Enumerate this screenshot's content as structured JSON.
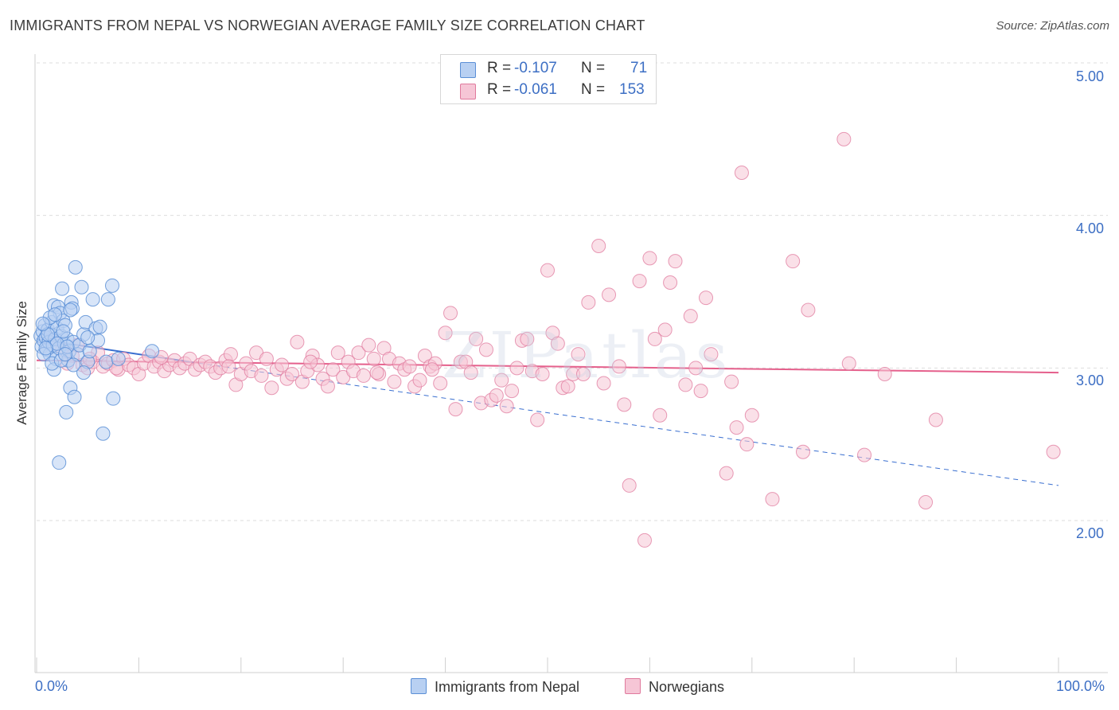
{
  "title": "IMMIGRANTS FROM NEPAL VS NORWEGIAN AVERAGE FAMILY SIZE CORRELATION CHART",
  "source": "Source: ZipAtlas.com",
  "watermark": "ZIPatlas",
  "colors": {
    "blue": "#5b8fd6",
    "blue_fill": "#b8d0f2",
    "blue_line": "#3a6fd0",
    "pink": "#e07a9d",
    "pink_fill": "#f6c6d6",
    "pink_line": "#e5608c",
    "tick_text": "#3d6fc4",
    "grid": "#dddddd"
  },
  "stats": {
    "nepal": {
      "r_label": "R =",
      "r": "-0.107",
      "n_label": "N =",
      "n": "71"
    },
    "norwegians": {
      "r_label": "R =",
      "r": "-0.061",
      "n_label": "N =",
      "n": "153"
    }
  },
  "chart_data": {
    "type": "scatter",
    "title": "IMMIGRANTS FROM NEPAL VS NORWEGIAN AVERAGE FAMILY SIZE CORRELATION CHART",
    "xlabel": "",
    "ylabel": "Average Family Size",
    "xlim": [
      0,
      100
    ],
    "ylim": [
      1.0,
      5.1
    ],
    "x_tick_labels": [
      "0.0%",
      "100.0%"
    ],
    "y_ticks": [
      2.0,
      3.0,
      4.0,
      5.0
    ],
    "y_tick_labels": [
      "2.00",
      "3.00",
      "4.00",
      "5.00"
    ],
    "grid": true,
    "legend_position": "bottom",
    "series": [
      {
        "name": "Immigrants from Nepal",
        "color": "blue",
        "trend": {
          "x0": 0,
          "y0": 3.19,
          "x1": 15,
          "y1": 3.04,
          "dashed_to_x": 100,
          "dashed_to_y": 2.23
        },
        "points": [
          [
            0.4,
            3.21
          ],
          [
            0.5,
            3.14
          ],
          [
            0.6,
            3.24
          ],
          [
            0.7,
            3.18
          ],
          [
            0.8,
            3.28
          ],
          [
            0.9,
            3.2
          ],
          [
            1.0,
            3.12
          ],
          [
            1.1,
            3.25
          ],
          [
            1.2,
            3.17
          ],
          [
            1.3,
            3.09
          ],
          [
            1.4,
            3.22
          ],
          [
            1.5,
            3.3
          ],
          [
            1.6,
            3.15
          ],
          [
            1.7,
            3.41
          ],
          [
            1.8,
            3.19
          ],
          [
            1.9,
            3.06
          ],
          [
            2.0,
            3.26
          ],
          [
            2.1,
            3.4
          ],
          [
            2.2,
            3.13
          ],
          [
            2.3,
            3.36
          ],
          [
            2.4,
            3.21
          ],
          [
            2.5,
            3.52
          ],
          [
            2.6,
            3.31
          ],
          [
            2.7,
            3.16
          ],
          [
            2.8,
            3.28
          ],
          [
            2.9,
            2.71
          ],
          [
            3.0,
            3.19
          ],
          [
            3.1,
            3.05
          ],
          [
            3.2,
            3.11
          ],
          [
            3.3,
            2.87
          ],
          [
            3.4,
            3.43
          ],
          [
            3.5,
            3.39
          ],
          [
            3.6,
            3.17
          ],
          [
            3.7,
            2.81
          ],
          [
            3.8,
            3.66
          ],
          [
            4.0,
            3.09
          ],
          [
            4.2,
            3.15
          ],
          [
            4.4,
            3.53
          ],
          [
            4.6,
            3.22
          ],
          [
            4.8,
            3.3
          ],
          [
            5.0,
            3.04
          ],
          [
            5.2,
            3.11
          ],
          [
            5.5,
            3.45
          ],
          [
            5.8,
            3.26
          ],
          [
            6.0,
            3.18
          ],
          [
            6.2,
            3.27
          ],
          [
            6.5,
            2.57
          ],
          [
            6.8,
            3.04
          ],
          [
            7.0,
            3.45
          ],
          [
            7.4,
            3.54
          ],
          [
            7.5,
            2.8
          ],
          [
            2.2,
            2.38
          ],
          [
            1.7,
            2.99
          ],
          [
            3.3,
            3.38
          ],
          [
            2.6,
            3.24
          ],
          [
            4.6,
            2.97
          ],
          [
            0.7,
            3.09
          ],
          [
            1.3,
            3.33
          ],
          [
            2.0,
            3.16
          ],
          [
            1.5,
            3.03
          ],
          [
            3.0,
            3.14
          ],
          [
            2.4,
            3.05
          ],
          [
            1.1,
            3.22
          ],
          [
            0.9,
            3.13
          ],
          [
            5.0,
            3.2
          ],
          [
            8.0,
            3.06
          ],
          [
            11.3,
            3.11
          ],
          [
            2.8,
            3.09
          ],
          [
            1.8,
            3.35
          ],
          [
            3.6,
            3.02
          ],
          [
            0.6,
            3.29
          ]
        ]
      },
      {
        "name": "Norwegians",
        "color": "pink",
        "trend": {
          "x0": 0,
          "y0": 3.05,
          "x1": 100,
          "y1": 2.97
        },
        "points": [
          [
            1.5,
            3.19
          ],
          [
            2.5,
            3.12
          ],
          [
            3.5,
            3.08
          ],
          [
            4.0,
            3.15
          ],
          [
            4.5,
            3.02
          ],
          [
            5.0,
            3.0
          ],
          [
            5.5,
            3.04
          ],
          [
            6.0,
            3.1
          ],
          [
            6.5,
            3.01
          ],
          [
            7.0,
            3.03
          ],
          [
            7.5,
            3.05
          ],
          [
            8.0,
            2.99
          ],
          [
            8.5,
            3.06
          ],
          [
            9.0,
            3.02
          ],
          [
            9.5,
            3.0
          ],
          [
            10.0,
            2.96
          ],
          [
            10.5,
            3.03
          ],
          [
            11.0,
            3.08
          ],
          [
            11.5,
            3.01
          ],
          [
            12.0,
            3.04
          ],
          [
            12.5,
            2.98
          ],
          [
            13.0,
            3.02
          ],
          [
            13.5,
            3.05
          ],
          [
            14.0,
            3.0
          ],
          [
            14.5,
            3.03
          ],
          [
            15.0,
            3.06
          ],
          [
            15.5,
            2.99
          ],
          [
            16.0,
            3.02
          ],
          [
            16.5,
            3.04
          ],
          [
            17.0,
            3.01
          ],
          [
            17.5,
            2.97
          ],
          [
            18.0,
            3.0
          ],
          [
            18.5,
            3.05
          ],
          [
            19.0,
            3.09
          ],
          [
            19.5,
            2.89
          ],
          [
            20.0,
            2.96
          ],
          [
            20.5,
            3.03
          ],
          [
            21.0,
            2.98
          ],
          [
            21.5,
            3.1
          ],
          [
            22.0,
            2.95
          ],
          [
            22.5,
            3.06
          ],
          [
            23.0,
            2.87
          ],
          [
            23.5,
            2.99
          ],
          [
            24.0,
            3.02
          ],
          [
            24.5,
            2.93
          ],
          [
            25.0,
            2.96
          ],
          [
            25.5,
            3.17
          ],
          [
            26.0,
            2.91
          ],
          [
            26.5,
            2.98
          ],
          [
            27.0,
            3.08
          ],
          [
            27.5,
            3.02
          ],
          [
            28.0,
            2.93
          ],
          [
            28.5,
            2.88
          ],
          [
            29.0,
            2.99
          ],
          [
            29.5,
            3.1
          ],
          [
            30.0,
            2.94
          ],
          [
            30.5,
            3.04
          ],
          [
            31.0,
            2.98
          ],
          [
            31.5,
            3.1
          ],
          [
            32.0,
            2.95
          ],
          [
            32.5,
            3.15
          ],
          [
            33.0,
            3.06
          ],
          [
            33.5,
            2.96
          ],
          [
            34.0,
            3.13
          ],
          [
            34.5,
            3.06
          ],
          [
            35.0,
            2.91
          ],
          [
            35.5,
            3.03
          ],
          [
            36.0,
            2.99
          ],
          [
            36.5,
            3.01
          ],
          [
            37.0,
            2.88
          ],
          [
            37.5,
            2.92
          ],
          [
            38.0,
            3.08
          ],
          [
            38.5,
            3.01
          ],
          [
            39.0,
            3.03
          ],
          [
            39.5,
            2.9
          ],
          [
            40.0,
            3.23
          ],
          [
            40.5,
            3.36
          ],
          [
            41.0,
            2.73
          ],
          [
            41.5,
            3.04
          ],
          [
            42.0,
            3.04
          ],
          [
            42.5,
            2.97
          ],
          [
            43.0,
            3.19
          ],
          [
            43.5,
            2.77
          ],
          [
            44.0,
            3.12
          ],
          [
            44.5,
            2.79
          ],
          [
            45.0,
            2.82
          ],
          [
            45.5,
            2.92
          ],
          [
            46.0,
            2.75
          ],
          [
            46.5,
            2.85
          ],
          [
            47.0,
            3.0
          ],
          [
            47.5,
            3.18
          ],
          [
            48.0,
            3.19
          ],
          [
            48.5,
            2.98
          ],
          [
            49.0,
            2.66
          ],
          [
            49.5,
            2.96
          ],
          [
            50.0,
            3.64
          ],
          [
            50.5,
            3.23
          ],
          [
            51.0,
            3.16
          ],
          [
            51.5,
            2.87
          ],
          [
            52.0,
            2.88
          ],
          [
            52.5,
            2.96
          ],
          [
            53.0,
            3.09
          ],
          [
            53.5,
            2.96
          ],
          [
            54.0,
            3.43
          ],
          [
            55.0,
            3.8
          ],
          [
            55.5,
            2.9
          ],
          [
            56.0,
            3.48
          ],
          [
            57.0,
            3.01
          ],
          [
            57.5,
            2.76
          ],
          [
            58.0,
            2.23
          ],
          [
            59.0,
            3.57
          ],
          [
            59.5,
            1.87
          ],
          [
            60.0,
            3.72
          ],
          [
            60.5,
            3.19
          ],
          [
            61.0,
            2.69
          ],
          [
            61.5,
            3.25
          ],
          [
            62.0,
            3.56
          ],
          [
            62.5,
            3.7
          ],
          [
            63.5,
            2.89
          ],
          [
            64.0,
            3.34
          ],
          [
            64.5,
            3.0
          ],
          [
            65.0,
            2.85
          ],
          [
            65.5,
            3.46
          ],
          [
            66.0,
            3.09
          ],
          [
            67.5,
            2.31
          ],
          [
            68.0,
            2.91
          ],
          [
            68.5,
            2.61
          ],
          [
            69.0,
            4.28
          ],
          [
            69.5,
            2.5
          ],
          [
            70.0,
            2.69
          ],
          [
            72.0,
            2.14
          ],
          [
            74.0,
            3.7
          ],
          [
            75.0,
            2.45
          ],
          [
            75.5,
            3.38
          ],
          [
            79.0,
            4.5
          ],
          [
            79.5,
            3.03
          ],
          [
            81.0,
            2.43
          ],
          [
            83.0,
            2.96
          ],
          [
            87.0,
            2.12
          ],
          [
            88.0,
            2.66
          ],
          [
            99.5,
            2.45
          ],
          [
            3.0,
            3.03
          ],
          [
            5.2,
            3.06
          ],
          [
            7.8,
            3.0
          ],
          [
            12.2,
            3.07
          ],
          [
            18.8,
            3.01
          ],
          [
            26.8,
            3.04
          ],
          [
            33.3,
            2.97
          ],
          [
            38.7,
            2.99
          ]
        ]
      }
    ]
  },
  "legend": {
    "nepal": "Immigrants from Nepal",
    "norwegians": "Norwegians"
  }
}
